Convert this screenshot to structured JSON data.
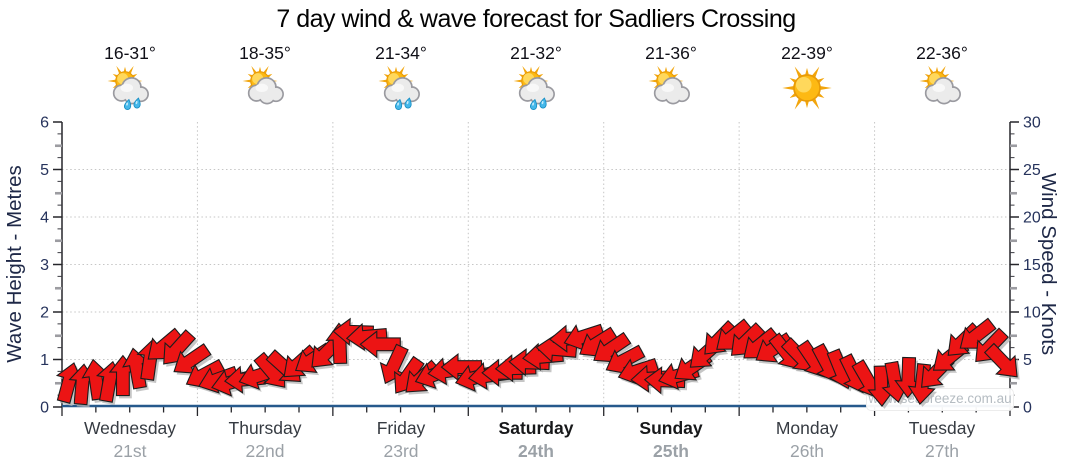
{
  "header": {
    "title": "7 day wind & wave forecast for Sadliers Crossing"
  },
  "watermark": "www.seabreeze.com.au",
  "colors": {
    "arrow": "#ec1414",
    "arrow_outline": "#1c1c1c",
    "arrow_shadow": "#b3b3b3",
    "wave_line": "#26598c",
    "grid": "#c6c6c6",
    "tick_label": "#26335c",
    "axis_label": "#1e2847",
    "title": "#030303",
    "date_gray": "#9ba1a7"
  },
  "days": [
    {
      "name": "Wednesday",
      "date": "21st",
      "temp": "16-31°",
      "icon": "sun-cloud-rain",
      "weekend": false
    },
    {
      "name": "Thursday",
      "date": "22nd",
      "temp": "18-35°",
      "icon": "sun-cloud",
      "weekend": false
    },
    {
      "name": "Friday",
      "date": "23rd",
      "temp": "21-34°",
      "icon": "sun-cloud-rain",
      "weekend": false
    },
    {
      "name": "Saturday",
      "date": "24th",
      "temp": "21-32°",
      "icon": "sun-cloud-rain",
      "weekend": true
    },
    {
      "name": "Sunday",
      "date": "25th",
      "temp": "21-36°",
      "icon": "sun-cloud",
      "weekend": true
    },
    {
      "name": "Monday",
      "date": "26th",
      "temp": "22-39°",
      "icon": "sun",
      "weekend": false
    },
    {
      "name": "Tuesday",
      "date": "27th",
      "temp": "22-36°",
      "icon": "sun-cloud",
      "weekend": false
    }
  ],
  "chart_data": {
    "type": "vector",
    "title": "7 day wind & wave forecast for Sadliers Crossing",
    "x": {
      "categories": [
        "Wednesday 21st",
        "Thursday 22nd",
        "Friday 23rd",
        "Saturday 24th",
        "Sunday 25th",
        "Monday 26th",
        "Tuesday 27th"
      ],
      "samples_per_day": 10,
      "sample_interval_hours": 2.4,
      "minor_ticks_per_day": 4
    },
    "y_left": {
      "label": "Wave Height - Metres",
      "min": 0,
      "max": 6,
      "major_ticks": [
        0,
        1,
        2,
        3,
        4,
        5,
        6
      ],
      "unit": "m"
    },
    "y_right": {
      "label": "Wind Speed - Knots",
      "min": 0,
      "max": 30,
      "major_ticks": [
        0,
        5,
        10,
        15,
        20,
        25,
        30
      ],
      "unit": "kn"
    },
    "grid": "dotted horizontal lines every 5 knots (1 m), dotted vertical lines at day boundaries",
    "wave_height_metres": {
      "series": "flat",
      "value": 0
    },
    "wind": {
      "convention": "each arrow = [speed_knots_at_arrow_centre, direction_arrow_points_deg_clockwise_from_up]; arrow glyph spans ~±2 kn around centre",
      "arrows_by_day": [
        [
          [
            2.6,
            15
          ],
          [
            2.4,
            5
          ],
          [
            2.9,
            352
          ],
          [
            2.7,
            10
          ],
          [
            3.3,
            0
          ],
          [
            4.1,
            350
          ],
          [
            5.0,
            8
          ],
          [
            6.4,
            230
          ],
          [
            6.1,
            222
          ],
          [
            4.9,
            236
          ]
        ],
        [
          [
            3.4,
            242
          ],
          [
            2.9,
            250
          ],
          [
            2.6,
            255
          ],
          [
            2.9,
            265
          ],
          [
            3.3,
            252
          ],
          [
            3.7,
            140
          ],
          [
            4.1,
            132
          ],
          [
            4.6,
            228
          ],
          [
            5.0,
            237
          ],
          [
            5.7,
            225
          ]
        ],
        [
          [
            6.7,
            358
          ],
          [
            7.9,
            272
          ],
          [
            7.4,
            265
          ],
          [
            6.6,
            270
          ],
          [
            4.4,
            205
          ],
          [
            3.2,
            215
          ],
          [
            3.0,
            228
          ],
          [
            3.4,
            250
          ],
          [
            3.8,
            262
          ],
          [
            4.2,
            270
          ]
        ],
        [
          [
            3.1,
            255
          ],
          [
            3.3,
            262
          ],
          [
            3.6,
            270
          ],
          [
            4.1,
            268
          ],
          [
            4.7,
            272
          ],
          [
            5.3,
            265
          ],
          [
            6.1,
            275
          ],
          [
            7.2,
            268
          ],
          [
            7.4,
            252
          ],
          [
            6.7,
            238
          ]
        ],
        [
          [
            6.1,
            236
          ],
          [
            4.9,
            242
          ],
          [
            3.8,
            252
          ],
          [
            3.0,
            266
          ],
          [
            2.8,
            272
          ],
          [
            3.3,
            255
          ],
          [
            4.2,
            236
          ],
          [
            5.6,
            228
          ],
          [
            7.1,
            224
          ],
          [
            7.4,
            231
          ]
        ],
        [
          [
            6.9,
            226
          ],
          [
            6.5,
            231
          ],
          [
            6.1,
            237
          ],
          [
            5.7,
            142
          ],
          [
            5.3,
            136
          ],
          [
            4.9,
            146
          ],
          [
            4.5,
            152
          ],
          [
            3.9,
            158
          ],
          [
            3.4,
            154
          ],
          [
            2.8,
            150
          ]
        ],
        [
          [
            2.2,
            178
          ],
          [
            2.6,
            170
          ],
          [
            3.1,
            182
          ],
          [
            2.4,
            186
          ],
          [
            3.6,
            224
          ],
          [
            5.2,
            231
          ],
          [
            6.9,
            226
          ],
          [
            7.5,
            232
          ],
          [
            6.3,
            224
          ],
          [
            4.7,
            136
          ]
        ]
      ]
    }
  }
}
